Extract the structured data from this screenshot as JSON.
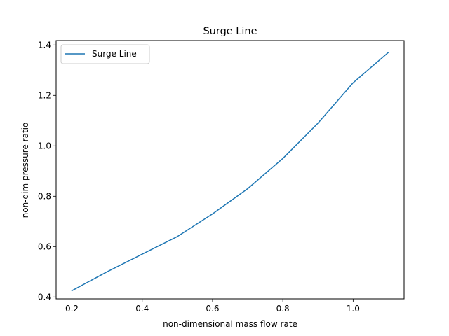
{
  "chart_data": {
    "type": "line",
    "title": "Surge Line",
    "xlabel": "non-dimensional mass flow rate",
    "ylabel": "non-dim pressure ratio",
    "xlim": [
      0.155,
      1.145
    ],
    "ylim": [
      0.3925,
      1.4175
    ],
    "xticks": [
      0.2,
      0.4,
      0.6,
      0.8,
      1.0
    ],
    "xtick_labels": [
      "0.2",
      "0.4",
      "0.6",
      "0.8",
      "1.0"
    ],
    "yticks": [
      0.4,
      0.6,
      0.8,
      1.0,
      1.2,
      1.4
    ],
    "ytick_labels": [
      "0.4",
      "0.6",
      "0.8",
      "1.0",
      "1.2",
      "1.4"
    ],
    "grid": false,
    "legend_position": "upper-left",
    "series": [
      {
        "name": "Surge Line",
        "color": "#1f77b4",
        "x": [
          0.2,
          0.3,
          0.4,
          0.5,
          0.6,
          0.7,
          0.8,
          0.9,
          1.0,
          1.1
        ],
        "y": [
          0.425,
          0.5,
          0.57,
          0.64,
          0.73,
          0.83,
          0.95,
          1.09,
          1.25,
          1.37
        ]
      }
    ]
  }
}
